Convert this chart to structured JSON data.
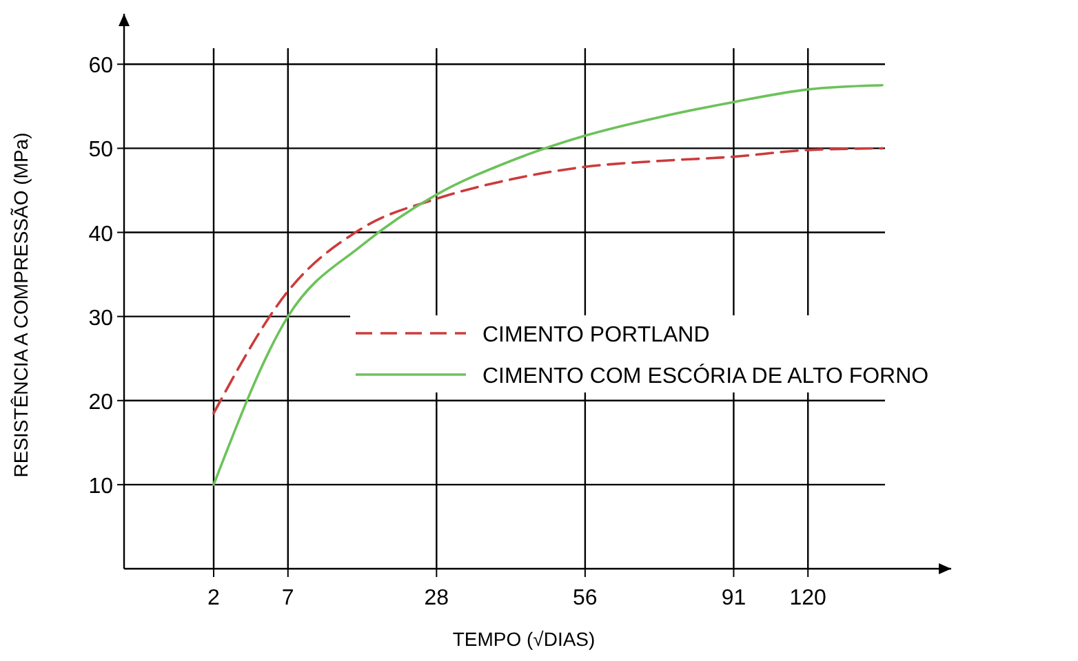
{
  "chart_data": {
    "type": "line",
    "xlabel": "TEMPO (√DIAS)",
    "ylabel": "RESISTÊNCIA A COMPRESSÃO (MPa)",
    "categories": [
      "2",
      "7",
      null,
      "28",
      null,
      "56",
      null,
      "91",
      "120",
      null
    ],
    "ylim": [
      0,
      66
    ],
    "yticks": [
      10,
      20,
      30,
      40,
      50,
      60
    ],
    "grid": true,
    "legend": "center",
    "marker": "none",
    "series": [
      {
        "name": "CIMENTO PORTLAND",
        "color": "#cc3b3b",
        "line_style": "dashed",
        "values": [
          18.5,
          33,
          40.5,
          44,
          46.3,
          47.8,
          48.5,
          49,
          49.8,
          50
        ]
      },
      {
        "name": "CIMENTO COM ESCÓRIA DE ALTO FORNO",
        "color": "#6cc25a",
        "line_style": "solid",
        "values": [
          10,
          30,
          38.5,
          44.5,
          48.5,
          51.5,
          53.7,
          55.5,
          57,
          57.5
        ]
      }
    ]
  }
}
